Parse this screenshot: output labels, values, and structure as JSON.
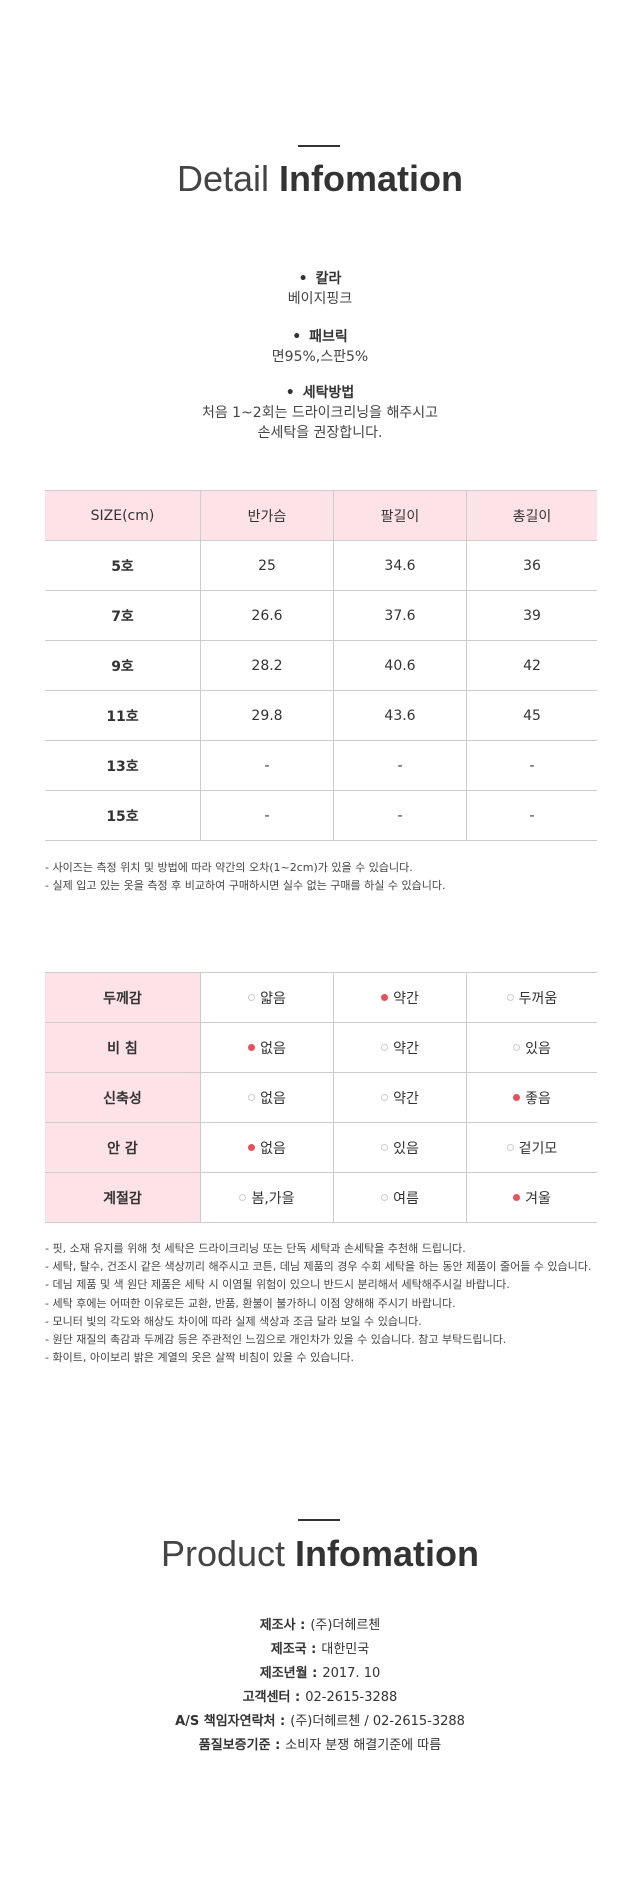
{
  "detail": {
    "title_light": "Detail",
    "title_bold": "Infomation",
    "specs": [
      {
        "label": "칼라",
        "lines": [
          "베이지핑크"
        ]
      },
      {
        "label": "패브릭",
        "lines": [
          "면95%,스판5%"
        ]
      },
      {
        "label": "세탁방법",
        "lines": [
          "처음 1~2회는 드라이크리닝을 해주시고",
          "손세탁을 권장합니다."
        ]
      }
    ]
  },
  "size_table": {
    "headers": [
      "SIZE(cm)",
      "반가슴",
      "팔길이",
      "총길이"
    ],
    "rows": [
      [
        "5호",
        "25",
        "34.6",
        "36"
      ],
      [
        "7호",
        "26.6",
        "37.6",
        "39"
      ],
      [
        "9호",
        "28.2",
        "40.6",
        "42"
      ],
      [
        "11호",
        "29.8",
        "43.6",
        "45"
      ],
      [
        "13호",
        "-",
        "-",
        "-"
      ],
      [
        "15호",
        "-",
        "-",
        "-"
      ]
    ],
    "notes": [
      "- 사이즈는 측정 위치 및 방법에 따라 약간의 오차(1~2cm)가 있을 수 있습니다.",
      "- 실제 입고 있는 옷을 측정 후 비교하여 구매하시면 실수 없는 구매를 하실 수 있습니다."
    ]
  },
  "fabric_table": {
    "rows": [
      {
        "label": "두께감",
        "options": [
          "얇음",
          "약간",
          "두꺼움"
        ],
        "selected": 1
      },
      {
        "label": "비 침",
        "options": [
          "없음",
          "약간",
          "있음"
        ],
        "selected": 0
      },
      {
        "label": "신축성",
        "options": [
          "없음",
          "약간",
          "좋음"
        ],
        "selected": 2
      },
      {
        "label": "안 감",
        "options": [
          "없음",
          "있음",
          "겉기모"
        ],
        "selected": 0
      },
      {
        "label": "계절감",
        "options": [
          "봄,가을",
          "여름",
          "겨울"
        ],
        "selected": 2
      }
    ],
    "notes": [
      "- 핏, 소재 유지를 위해 첫 세탁은 드라이크리닝 또는 단독 세탁과 손세탁을 추천해 드립니다.",
      "- 세탁, 탈수, 건조시 같은 색상끼리 해주시고 코튼, 데님 제품의 경우 수회 세탁을 하는 동안 제품이 줄어들 수 있습니다.",
      "- 데님 제품 및 색 원단 제품은 세탁 시 이염될 위험이 있으니 반드시 분리해서 세탁해주시길 바랍니다.",
      "- 세탁 후에는 어떠한 이유로든 교환, 반품, 환불이 불가하니 이점 양해해 주시기 바랍니다.",
      "- 모니터 빛의 각도와 해상도 차이에 따라 실제 색상과 조금 달라 보일 수 있습니다.",
      "- 원단 재질의 촉감과 두께감 등은 주관적인 느낌으로 개인차가 있을 수 있습니다. 참고 부탁드립니다.",
      "- 화이트, 아이보리 밝은 계열의 옷은 살짝 비침이 있을 수 있습니다."
    ]
  },
  "product": {
    "title_light": "Product",
    "title_bold": "Infomation",
    "info": [
      {
        "label": "제조사 :",
        "value": "(주)더헤르첸"
      },
      {
        "label": "제조국 :",
        "value": "대한민국"
      },
      {
        "label": "제조년월 :",
        "value": "2017. 10"
      },
      {
        "label": "고객센터 :",
        "value": "02-2615-3288"
      },
      {
        "label": "A/S 책임자연락처 :",
        "value": "(주)더헤르첸 / 02-2615-3288"
      },
      {
        "label": "품질보증기준 :",
        "value": "소비자 분쟁 해결기준에 따름"
      }
    ]
  }
}
